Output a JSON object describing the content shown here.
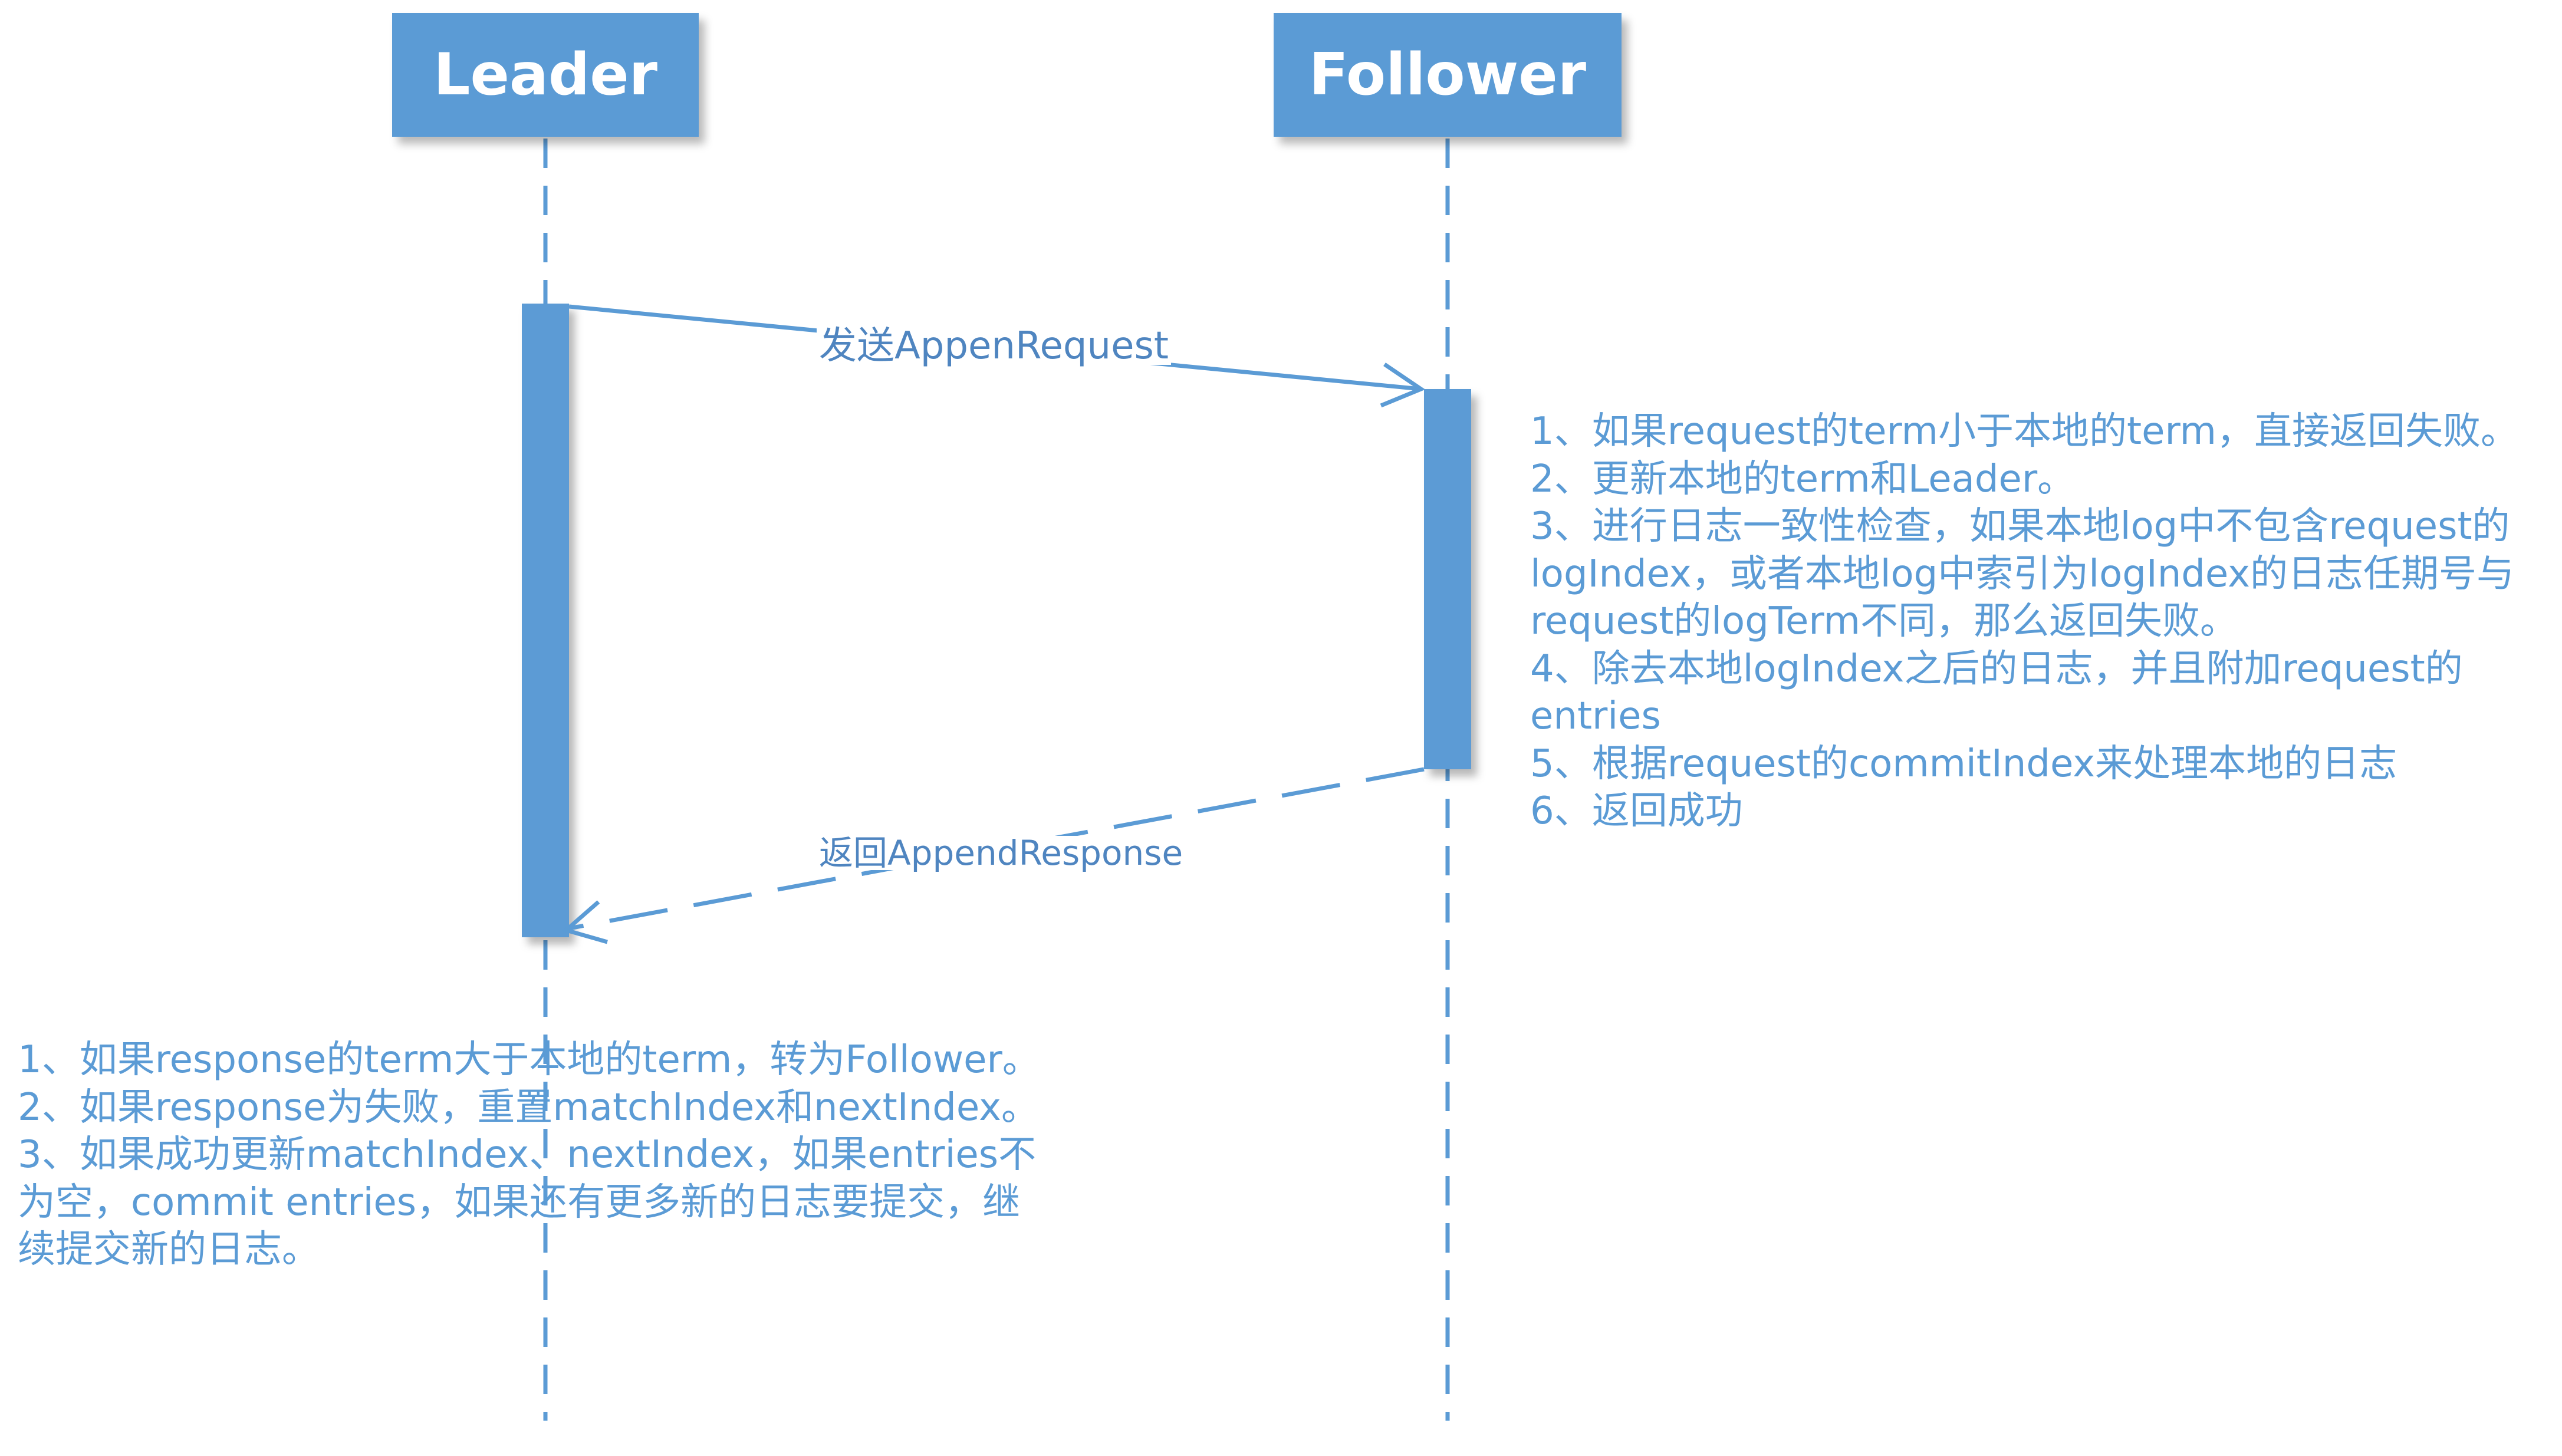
{
  "participants": {
    "leader": "Leader",
    "follower": "Follower"
  },
  "messages": {
    "request": "发送AppenRequest",
    "response": "返回AppendResponse"
  },
  "follower_note": [
    "1、如果request的term小于本地的term，直接返回失败。",
    "2、更新本地的term和Leader。",
    "3、进行日志一致性检查，如果本地log中不包含request的",
    "logIndex，或者本地log中索引为logIndex的日志任期号与",
    "request的logTerm不同，那么返回失败。",
    "4、除去本地logIndex之后的日志，并且附加request的",
    "entries",
    "5、根据request的commitIndex来处理本地的日志",
    "6、返回成功"
  ],
  "leader_note": [
    "1、如果response的term大于本地的term，转为Follower。",
    "2、如果response为失败，重置matchIndex和nextIndex。",
    "3、如果成功更新matchIndex、nextIndex，如果entries不",
    "为空，commit entries，如果还有更多新的日志要提交，继",
    "续提交新的日志。"
  ],
  "colors": {
    "accent": "#5b9bd5",
    "label_text": "#4f85c0",
    "header_text": "#ffffff",
    "background": "#ffffff"
  }
}
